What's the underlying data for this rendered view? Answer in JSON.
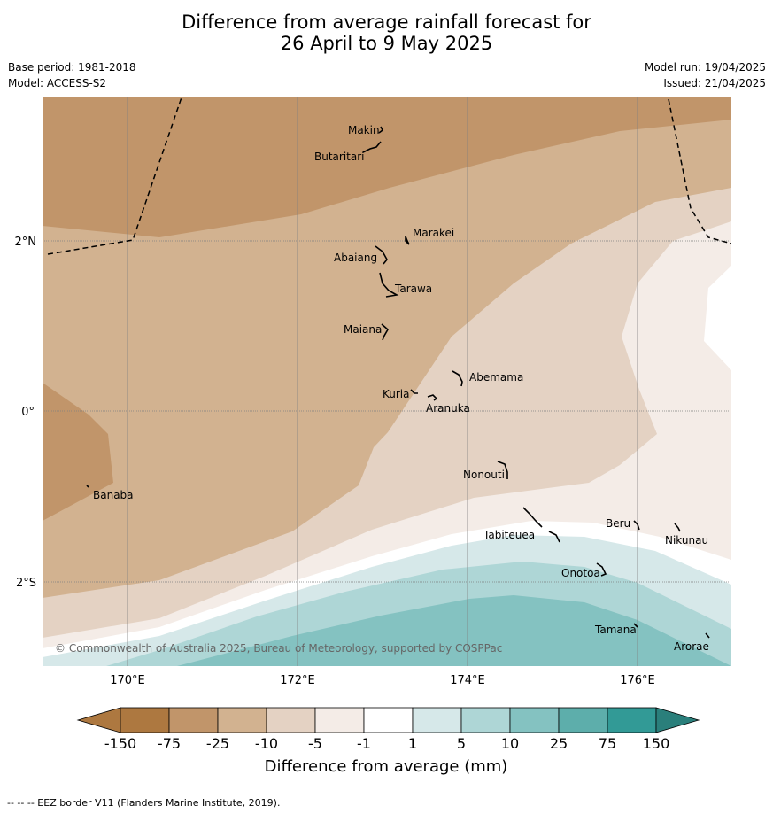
{
  "title_line1": "Difference from average rainfall forecast for",
  "title_line2": "26 April to 9 May 2025",
  "base_period": "Base period: 1981-2018",
  "model": "Model: ACCESS-S2",
  "model_run": "Model run: 19/04/2025",
  "issued": "Issued: 21/04/2025",
  "copyright": "© Commonwealth of Australia 2025, Bureau of Meteorology, supported by COSPPac",
  "lon_labels": [
    "170°E",
    "172°E",
    "174°E",
    "176°E"
  ],
  "lat_labels": [
    "2°N",
    "0°",
    "2°S"
  ],
  "places": [
    "Makin",
    "Butaritari",
    "Marakei",
    "Abaiang",
    "Tarawa",
    "Maiana",
    "Abemama",
    "Kuria",
    "Aranuka",
    "Banaba",
    "Nonouti",
    "Tabiteuea",
    "Beru",
    "Nikunau",
    "Onotoa",
    "Tamana",
    "Arorae"
  ],
  "colorbar": {
    "title": "Difference from average (mm)",
    "ticks": [
      "-150",
      "-75",
      "-25",
      "-10",
      "-5",
      "-1",
      "1",
      "5",
      "10",
      "25",
      "75",
      "150"
    ],
    "colors": [
      "#ad7840",
      "#c1956a",
      "#d2b290",
      "#e4d2c3",
      "#f4ece7",
      "#ffffff",
      "#d6e8e9",
      "#aed6d6",
      "#84c2c1",
      "#5daeab",
      "#329a96",
      "#2a7f7b"
    ]
  },
  "footnote": "--  --  -- EEZ border V11 (Flanders Marine Institute, 2019)."
}
